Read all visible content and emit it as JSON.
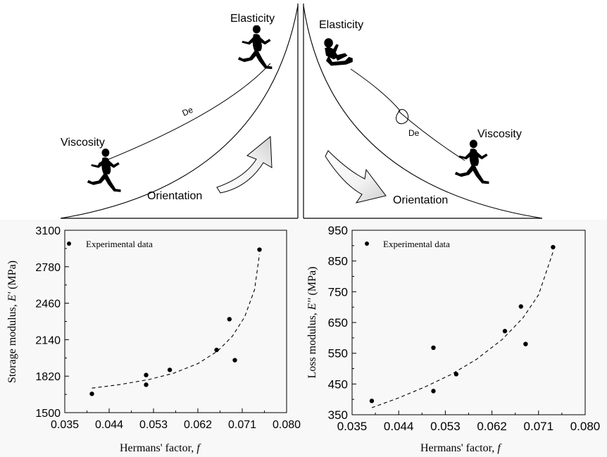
{
  "diagram": {
    "left": {
      "elasticity": "Elasticity",
      "viscosity": "Viscosity",
      "de": "De",
      "orientation": "Orientation"
    },
    "right": {
      "elasticity": "Elasticity",
      "viscosity": "Viscosity",
      "de": "De",
      "orientation": "Orientation"
    }
  },
  "chart_data": [
    {
      "type": "scatter",
      "xlabel_text": "Hermans' factor, ",
      "xlabel_var": "f",
      "ylabel_text": "Storage modulus, ",
      "ylabel_var": "E'",
      "ylabel_unit": " (MPa)",
      "legend": "Experimental data",
      "legend_position": "top-left",
      "xlim": [
        0.035,
        0.08
      ],
      "ylim": [
        1500,
        3100
      ],
      "xticks": [
        "0.035",
        "0.044",
        "0.053",
        "0.062",
        "0.071",
        "0.080"
      ],
      "yticks": [
        "1500",
        "1820",
        "2140",
        "2460",
        "2780",
        "3100"
      ],
      "points": [
        {
          "x": 0.0405,
          "y": 1665
        },
        {
          "x": 0.0515,
          "y": 1830
        },
        {
          "x": 0.0515,
          "y": 1745
        },
        {
          "x": 0.0563,
          "y": 1875
        },
        {
          "x": 0.0658,
          "y": 2050
        },
        {
          "x": 0.0684,
          "y": 2320
        },
        {
          "x": 0.0695,
          "y": 1960
        },
        {
          "x": 0.0745,
          "y": 2930
        }
      ],
      "fit": {
        "style": "dashed",
        "points": [
          [
            0.0405,
            1715
          ],
          [
            0.046,
            1745
          ],
          [
            0.052,
            1790
          ],
          [
            0.057,
            1845
          ],
          [
            0.062,
            1930
          ],
          [
            0.066,
            2040
          ],
          [
            0.069,
            2170
          ],
          [
            0.0715,
            2340
          ],
          [
            0.0735,
            2580
          ],
          [
            0.0745,
            2890
          ]
        ]
      }
    },
    {
      "type": "scatter",
      "xlabel_text": "Hermans' factor, ",
      "xlabel_var": "f",
      "ylabel_text": "Loss modulus, ",
      "ylabel_var": "E''",
      "ylabel_unit": " (MPa)",
      "legend": "Experimental data",
      "legend_position": "top-left",
      "xlim": [
        0.035,
        0.08
      ],
      "ylim": [
        350,
        950
      ],
      "xticks": [
        "0.035",
        "0.044",
        "0.053",
        "0.062",
        "0.071",
        "0.080"
      ],
      "yticks": [
        "350",
        "450",
        "550",
        "650",
        "750",
        "850",
        "950"
      ],
      "points": [
        {
          "x": 0.0388,
          "y": 395
        },
        {
          "x": 0.0507,
          "y": 568
        },
        {
          "x": 0.0507,
          "y": 427
        },
        {
          "x": 0.0551,
          "y": 482
        },
        {
          "x": 0.0645,
          "y": 622
        },
        {
          "x": 0.0676,
          "y": 702
        },
        {
          "x": 0.0685,
          "y": 580
        },
        {
          "x": 0.0738,
          "y": 895
        }
      ],
      "fit": {
        "style": "dashed",
        "points": [
          [
            0.0388,
            373
          ],
          [
            0.044,
            405
          ],
          [
            0.049,
            440
          ],
          [
            0.054,
            480
          ],
          [
            0.059,
            530
          ],
          [
            0.064,
            595
          ],
          [
            0.068,
            665
          ],
          [
            0.071,
            740
          ],
          [
            0.0738,
            880
          ]
        ]
      }
    }
  ]
}
